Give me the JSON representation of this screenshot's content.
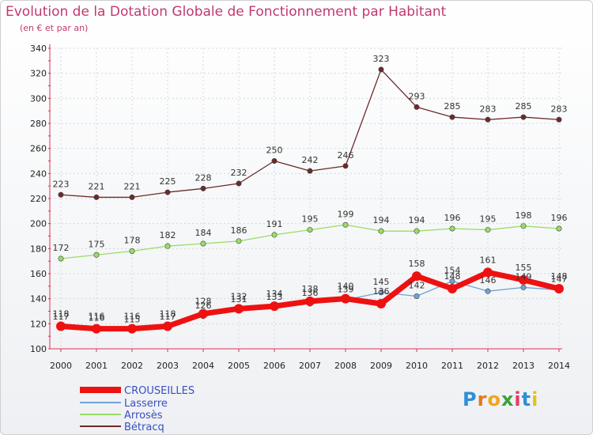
{
  "chart_data": {
    "type": "line",
    "title": "Evolution de la Dotation Globale de Fonctionnement par Habitant",
    "subtitle": "(en € et par an)",
    "x": [
      "2000",
      "2001",
      "2002",
      "2003",
      "2004",
      "2005",
      "2006",
      "2007",
      "2008",
      "2009",
      "2010",
      "2011",
      "2012",
      "2013",
      "2014"
    ],
    "ylim": [
      100,
      340
    ],
    "yticks": [
      100,
      120,
      140,
      160,
      180,
      200,
      220,
      240,
      260,
      280,
      300,
      320,
      340
    ],
    "series": [
      {
        "name": "CROUSEILLES",
        "color": "#ee1111",
        "values": [
          118,
          116,
          116,
          118,
          128,
          132,
          134,
          138,
          140,
          136,
          158,
          148,
          161,
          155,
          148
        ]
      },
      {
        "name": "Lasserre",
        "color": "#6fa3d6",
        "values": [
          117,
          116,
          115,
          117,
          126,
          131,
          133,
          136,
          139,
          145,
          142,
          154,
          146,
          149,
          147
        ]
      },
      {
        "name": "Arrosès",
        "color": "#99dd66",
        "values": [
          172,
          175,
          178,
          182,
          184,
          186,
          191,
          195,
          199,
          194,
          194,
          196,
          195,
          198,
          196
        ]
      },
      {
        "name": "Bétracq",
        "color": "#6b2a2a",
        "values": [
          223,
          221,
          221,
          225,
          228,
          232,
          250,
          242,
          246,
          323,
          293,
          285,
          283,
          285,
          283
        ]
      }
    ]
  },
  "logo_text": "Proxiti"
}
